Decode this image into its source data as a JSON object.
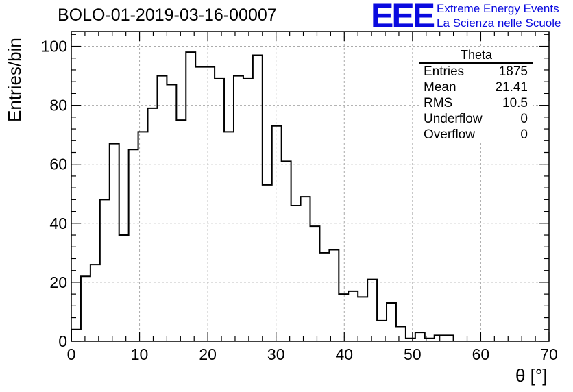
{
  "page": {
    "title": "BOLO-01-2019-03-16-00007"
  },
  "logo": {
    "mark": "EEE",
    "line1": "Extreme Energy Events",
    "line2": "La Scienza nelle Scuole",
    "color": "#0a0adf"
  },
  "stats_box": {
    "title": "Theta",
    "rows": [
      {
        "label": "Entries",
        "value": "1875"
      },
      {
        "label": "Mean",
        "value": "21.41"
      },
      {
        "label": "RMS",
        "value": "10.5"
      },
      {
        "label": "Underflow",
        "value": "0"
      },
      {
        "label": "Overflow",
        "value": "0"
      }
    ]
  },
  "chart_data": {
    "type": "histogram",
    "title": "BOLO-01-2019-03-16-00007",
    "xlabel": "θ [°]",
    "ylabel": "Entries/bin",
    "xlim": [
      0,
      70
    ],
    "ylim": [
      0,
      105
    ],
    "bin_width": 1.4,
    "bin_start": 0,
    "values": [
      4,
      22,
      26,
      48,
      67,
      36,
      65,
      71,
      79,
      90,
      87,
      75,
      98,
      93,
      93,
      89,
      71,
      90,
      89,
      97,
      53,
      73,
      61,
      46,
      49,
      39,
      30,
      31,
      16,
      17,
      15,
      21,
      7,
      13,
      5,
      1,
      3,
      1,
      2,
      2
    ],
    "xticks": [
      0,
      10,
      20,
      30,
      40,
      50,
      60,
      70
    ],
    "yticks": [
      0,
      20,
      40,
      60,
      80,
      100
    ],
    "grid": true,
    "line_color": "#000000"
  }
}
